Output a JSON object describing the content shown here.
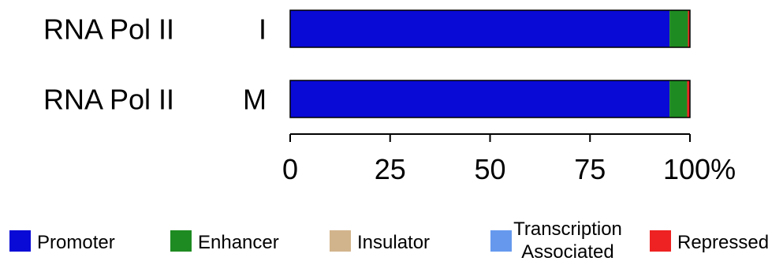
{
  "chart_data": {
    "type": "bar",
    "orientation": "horizontal",
    "stacked": true,
    "rows": [
      {
        "name": "RNA Pol II",
        "sample": "I"
      },
      {
        "name": "RNA Pol II",
        "sample": "M"
      }
    ],
    "series": [
      {
        "name": "Promoter",
        "color": "#0a0ad6",
        "values": [
          94.9,
          94.9
        ]
      },
      {
        "name": "Enhancer",
        "color": "#1e8b22",
        "values": [
          4.6,
          4.4
        ]
      },
      {
        "name": "Insulator",
        "color": "#d2b48c",
        "values": [
          0,
          0
        ]
      },
      {
        "name": "Transcription Associated",
        "color": "#6699ee",
        "values": [
          0,
          0
        ]
      },
      {
        "name": "Repressed",
        "color": "#ee2222",
        "values": [
          0.5,
          0.7
        ]
      }
    ],
    "xlim": [
      0,
      100
    ],
    "ticks": [
      "0",
      "25",
      "50",
      "75",
      "100%"
    ],
    "legend": {
      "placement": "bottom",
      "items": [
        {
          "label": "Promoter",
          "color": "#0a0ad6"
        },
        {
          "label": "Enhancer",
          "color": "#1e8b22"
        },
        {
          "label": "Insulator",
          "color": "#d2b48c"
        },
        {
          "label_lines": [
            "Transcription",
            "Associated"
          ],
          "color": "#6699ee"
        },
        {
          "label": "Repressed",
          "color": "#ee2222"
        }
      ]
    }
  }
}
